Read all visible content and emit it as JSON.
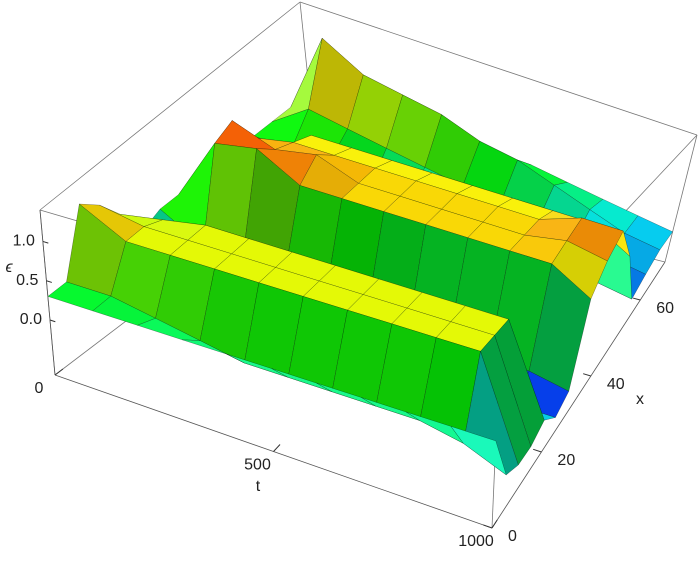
{
  "chart_data": {
    "type": "surface",
    "t": [
      0,
      100,
      200,
      300,
      400,
      500,
      600,
      700,
      800,
      900,
      1000
    ],
    "x": [
      0,
      5,
      10,
      15,
      20,
      25,
      30,
      35,
      40,
      45,
      50,
      55,
      60,
      65,
      70
    ],
    "z": [
      [
        0.3,
        0.3,
        1.1,
        0.9,
        0.6,
        0.2,
        0.3,
        0.3,
        0.3,
        0.3,
        0.3,
        0.3,
        0.3,
        0.3,
        0.3
      ],
      [
        0.3,
        0.3,
        0.8,
        0.8,
        0.7,
        -0.2,
        0.0,
        1.1,
        1.2,
        0.8,
        0.3,
        0.3,
        0.6,
        1.3,
        0.3
      ],
      [
        0.3,
        0.2,
        0.8,
        0.8,
        0.8,
        -0.3,
        0.1,
        1.2,
        1.0,
        0.9,
        0.8,
        0.3,
        0.5,
        1.0,
        0.3
      ],
      [
        0.3,
        0.1,
        0.8,
        0.8,
        0.8,
        -0.4,
        0.0,
        0.9,
        1.1,
        0.9,
        0.8,
        0.1,
        0.4,
        0.9,
        0.3
      ],
      [
        0.3,
        0.0,
        0.8,
        0.8,
        0.8,
        -0.4,
        -0.1,
        0.9,
        0.9,
        0.9,
        0.8,
        0.0,
        0.3,
        0.8,
        0.3
      ],
      [
        0.3,
        0.0,
        0.8,
        0.8,
        0.8,
        -0.5,
        -0.2,
        0.9,
        0.9,
        0.9,
        0.8,
        0.0,
        0.2,
        0.6,
        0.2
      ],
      [
        0.3,
        0.0,
        0.8,
        0.8,
        0.8,
        -0.5,
        -0.3,
        0.9,
        0.9,
        0.9,
        0.8,
        -0.1,
        0.1,
        0.5,
        0.2
      ],
      [
        0.3,
        0.0,
        0.8,
        0.8,
        0.8,
        -0.5,
        -0.3,
        0.9,
        0.9,
        0.9,
        0.8,
        -0.2,
        0.0,
        0.3,
        0.1
      ],
      [
        0.3,
        0.0,
        0.8,
        0.8,
        0.8,
        -0.5,
        -0.3,
        0.9,
        0.9,
        0.9,
        0.8,
        -0.3,
        -0.1,
        0.1,
        0.0
      ],
      [
        0.3,
        -0.1,
        0.8,
        0.8,
        0.8,
        -0.5,
        -0.3,
        0.9,
        1.0,
        1.1,
        0.8,
        -0.3,
        -0.2,
        -0.1,
        -0.1
      ],
      [
        0.3,
        -0.3,
        -0.4,
        -0.4,
        -0.3,
        -0.5,
        -0.4,
        0.6,
        0.9,
        1.1,
        0.5,
        -0.4,
        -0.3,
        -0.2,
        -0.2
      ]
    ],
    "t_label": "t",
    "x_label": "x",
    "z_label": "ϵ",
    "tlim": [
      0,
      1000
    ],
    "tticks": [
      0,
      500,
      1000
    ],
    "xlim": [
      0,
      70
    ],
    "xticks": [
      0,
      20,
      40,
      60
    ],
    "zlim": [
      -0.7,
      1.4
    ],
    "zticks": [
      {
        "value": 0,
        "label": "0.0"
      },
      0.5,
      {
        "value": 1,
        "label": "1.0"
      }
    ]
  }
}
